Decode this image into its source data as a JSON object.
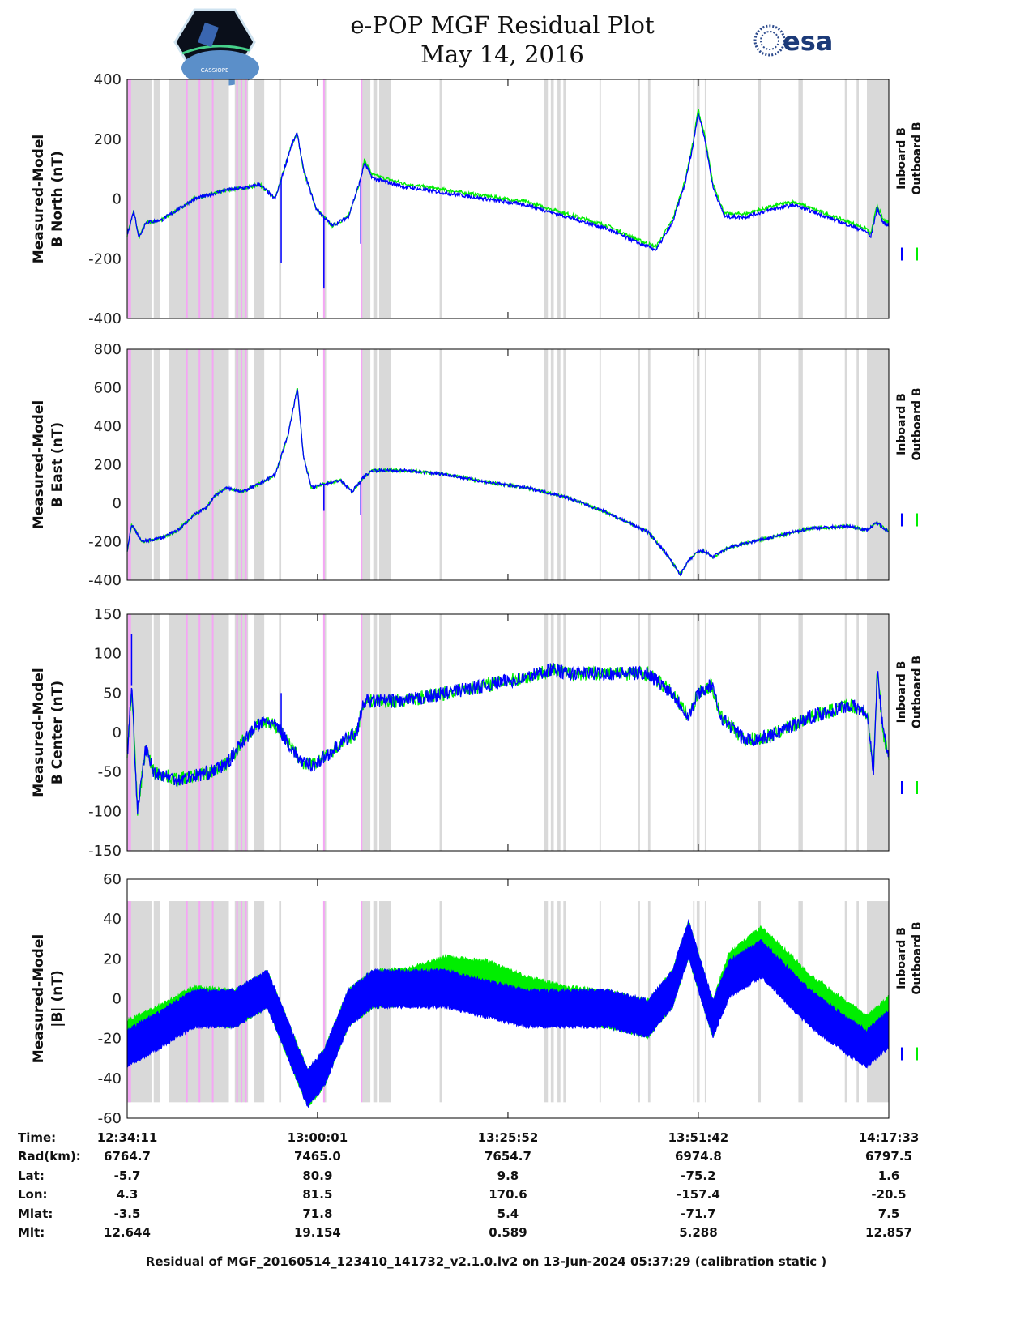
{
  "header": {
    "title": "e-POP MGF Residual Plot",
    "date": "May 14, 2016",
    "left_logo_text": "CASSIOPE",
    "right_logo_text": "esa"
  },
  "colors": {
    "inboard": "#0000ff",
    "outboard": "#00ee00",
    "shade": "#d9d9d9",
    "flag": "#f4a6f4"
  },
  "chart_data": {
    "type": "line",
    "x_unit": "minutes since 12:34:11",
    "xlim": [
      0,
      103.37
    ],
    "x_ticks": [
      0,
      25.83,
      51.68,
      77.52,
      103.37
    ],
    "shaded_intervals": [
      [
        0,
        3.4
      ],
      [
        3.6,
        4.5
      ],
      [
        5.7,
        13.8
      ],
      [
        14.6,
        16.4
      ],
      [
        17.2,
        18.6
      ],
      [
        20.6,
        20.9
      ],
      [
        26.7,
        27.0
      ],
      [
        31.9,
        33.0
      ],
      [
        33.4,
        33.9
      ],
      [
        34.2,
        35.8
      ],
      [
        42.4,
        42.7
      ],
      [
        56.6,
        57.1
      ],
      [
        57.5,
        57.9
      ],
      [
        58.4,
        58.8
      ],
      [
        59.2,
        59.5
      ],
      [
        64.1,
        64.3
      ],
      [
        69.4,
        69.6
      ],
      [
        70.7,
        71.0
      ],
      [
        76.8,
        77.0
      ],
      [
        77.3,
        77.7
      ],
      [
        78.4,
        78.6
      ],
      [
        85.6,
        86.0
      ],
      [
        91.1,
        91.7
      ],
      [
        97.4,
        97.7
      ],
      [
        99.0,
        99.3
      ],
      [
        100.4,
        103.4
      ]
    ],
    "flag_lines": [
      0.1,
      0.3,
      8.0,
      9.7,
      11.5,
      14.8,
      15.4,
      16.0,
      26.6,
      31.7
    ],
    "legend": [
      "Inboard B",
      "Outboard B"
    ],
    "panels": [
      {
        "ylabel1": "Measured-Model",
        "ylabel2": "B North (nT)",
        "ylim": [
          -400,
          400
        ],
        "yticks": [
          "-400",
          "-200",
          "0",
          "200",
          "400"
        ],
        "ytick_values": [
          -400,
          -200,
          0,
          200,
          400
        ],
        "noise": 6,
        "inboard": [
          [
            0,
            -120
          ],
          [
            0.9,
            -40
          ],
          [
            1.6,
            -130
          ],
          [
            2.5,
            -80
          ],
          [
            4.7,
            -70
          ],
          [
            9.1,
            0
          ],
          [
            13.5,
            30
          ],
          [
            16.8,
            40
          ],
          [
            17.9,
            50
          ],
          [
            20.1,
            0
          ],
          [
            22.3,
            180
          ],
          [
            23.1,
            220
          ],
          [
            23.9,
            100
          ],
          [
            25.6,
            -30
          ],
          [
            27.8,
            -90
          ],
          [
            30.0,
            -60
          ],
          [
            31.6,
            60
          ],
          [
            32.2,
            120
          ],
          [
            33.3,
            70
          ],
          [
            37.7,
            40
          ],
          [
            43.2,
            20
          ],
          [
            48.7,
            0
          ],
          [
            54.2,
            -20
          ],
          [
            59.7,
            -60
          ],
          [
            65.2,
            -100
          ],
          [
            69.6,
            -150
          ],
          [
            71.8,
            -170
          ],
          [
            74.0,
            -80
          ],
          [
            75.7,
            50
          ],
          [
            76.8,
            180
          ],
          [
            77.5,
            290
          ],
          [
            78.4,
            200
          ],
          [
            79.5,
            40
          ],
          [
            81.1,
            -60
          ],
          [
            83.9,
            -60
          ],
          [
            88.3,
            -30
          ],
          [
            90.5,
            -20
          ],
          [
            92.7,
            -40
          ],
          [
            97.1,
            -80
          ],
          [
            100.4,
            -110
          ],
          [
            100.9,
            -130
          ],
          [
            101.8,
            -30
          ],
          [
            102.6,
            -80
          ],
          [
            103.4,
            -90
          ]
        ],
        "outboard_offset": 10,
        "spikes": [
          [
            20.9,
            -215
          ],
          [
            26.7,
            -300
          ],
          [
            31.7,
            -150
          ]
        ]
      },
      {
        "ylabel1": "Measured-Model",
        "ylabel2": "B East (nT)",
        "ylim": [
          -400,
          800
        ],
        "yticks": [
          "-400",
          "-200",
          "0",
          "200",
          "400",
          "600",
          "800"
        ],
        "ytick_values": [
          -400,
          -200,
          0,
          200,
          400,
          600,
          800
        ],
        "noise": 8,
        "inboard": [
          [
            0,
            -250
          ],
          [
            0.6,
            -110
          ],
          [
            2.0,
            -200
          ],
          [
            4.7,
            -180
          ],
          [
            6.9,
            -140
          ],
          [
            9.1,
            -60
          ],
          [
            10.8,
            -20
          ],
          [
            11.9,
            40
          ],
          [
            13.5,
            80
          ],
          [
            15.7,
            60
          ],
          [
            17.9,
            100
          ],
          [
            20.1,
            150
          ],
          [
            21.8,
            350
          ],
          [
            23.1,
            600
          ],
          [
            23.9,
            250
          ],
          [
            25.0,
            80
          ],
          [
            26.7,
            100
          ],
          [
            28.9,
            120
          ],
          [
            30.5,
            60
          ],
          [
            32.2,
            140
          ],
          [
            33.3,
            170
          ],
          [
            37.7,
            170
          ],
          [
            43.2,
            150
          ],
          [
            48.7,
            110
          ],
          [
            54.2,
            80
          ],
          [
            59.7,
            30
          ],
          [
            65.2,
            -50
          ],
          [
            70.7,
            -150
          ],
          [
            72.9,
            -250
          ],
          [
            75.1,
            -370
          ],
          [
            76.2,
            -300
          ],
          [
            77.5,
            -250
          ],
          [
            78.4,
            -250
          ],
          [
            79.5,
            -280
          ],
          [
            81.7,
            -230
          ],
          [
            87.2,
            -180
          ],
          [
            92.7,
            -130
          ],
          [
            98.2,
            -120
          ],
          [
            100.4,
            -140
          ],
          [
            101.8,
            -100
          ],
          [
            103.4,
            -150
          ]
        ],
        "outboard_offset": 0,
        "spikes": [
          [
            26.7,
            -40
          ],
          [
            31.7,
            -60
          ]
        ]
      },
      {
        "ylabel1": "Measured-Model",
        "ylabel2": "B Center (nT)",
        "ylim": [
          -150,
          150
        ],
        "yticks": [
          "-150",
          "-100",
          "-50",
          "0",
          "50",
          "100",
          "150"
        ],
        "ytick_values": [
          -150,
          -100,
          -50,
          0,
          50,
          100,
          150
        ],
        "noise": 9,
        "inboard": [
          [
            0,
            -30
          ],
          [
            0.6,
            60
          ],
          [
            1.4,
            -100
          ],
          [
            2.5,
            -20
          ],
          [
            3.6,
            -50
          ],
          [
            6.9,
            -60
          ],
          [
            11.3,
            -50
          ],
          [
            13.5,
            -40
          ],
          [
            15.7,
            -10
          ],
          [
            17.9,
            10
          ],
          [
            19.0,
            15
          ],
          [
            20.6,
            5
          ],
          [
            22.3,
            -20
          ],
          [
            23.9,
            -40
          ],
          [
            25.6,
            -40
          ],
          [
            28.9,
            -15
          ],
          [
            31.1,
            0
          ],
          [
            32.2,
            40
          ],
          [
            37.7,
            40
          ],
          [
            43.2,
            50
          ],
          [
            48.7,
            60
          ],
          [
            54.2,
            70
          ],
          [
            57.5,
            80
          ],
          [
            59.7,
            75
          ],
          [
            65.2,
            75
          ],
          [
            70.7,
            75
          ],
          [
            74.0,
            50
          ],
          [
            76.2,
            20
          ],
          [
            77.5,
            50
          ],
          [
            79.3,
            60
          ],
          [
            80.6,
            20
          ],
          [
            83.9,
            -10
          ],
          [
            87.2,
            -5
          ],
          [
            92.7,
            20
          ],
          [
            98.2,
            35
          ],
          [
            100.4,
            25
          ],
          [
            101.3,
            -50
          ],
          [
            101.8,
            80
          ],
          [
            102.6,
            0
          ],
          [
            103.4,
            -30
          ]
        ],
        "outboard_offset": 0,
        "spikes": [
          [
            0.6,
            125
          ],
          [
            20.9,
            50
          ]
        ]
      },
      {
        "ylabel1": "Measured-Model",
        "ylabel2": "|B| (nT)",
        "ylim": [
          -60,
          60
        ],
        "yticks": [
          "-60",
          "-40",
          "-20",
          "0",
          "20",
          "40",
          "60"
        ],
        "ytick_values": [
          -60,
          -40,
          -20,
          0,
          20,
          40,
          60
        ],
        "shade_ylim": [
          -52,
          49
        ],
        "band_halfwidth": 10,
        "inboard": [
          [
            0,
            -25
          ],
          [
            4.7,
            -15
          ],
          [
            9.1,
            -5
          ],
          [
            14.6,
            -5
          ],
          [
            19.0,
            5
          ],
          [
            21.2,
            -15
          ],
          [
            24.5,
            -45
          ],
          [
            26.7,
            -35
          ],
          [
            30.0,
            -5
          ],
          [
            33.3,
            5
          ],
          [
            43.2,
            5
          ],
          [
            48.7,
            0
          ],
          [
            54.2,
            -5
          ],
          [
            59.7,
            -5
          ],
          [
            65.2,
            -5
          ],
          [
            70.7,
            -10
          ],
          [
            74.0,
            5
          ],
          [
            76.2,
            30
          ],
          [
            77.8,
            10
          ],
          [
            79.5,
            -10
          ],
          [
            81.7,
            10
          ],
          [
            86.1,
            20
          ],
          [
            92.7,
            -5
          ],
          [
            98.2,
            -20
          ],
          [
            100.4,
            -25
          ],
          [
            103.4,
            -15
          ]
        ],
        "outboard": [
          [
            0,
            -20
          ],
          [
            4.7,
            -12
          ],
          [
            9.1,
            -3
          ],
          [
            14.6,
            -5
          ],
          [
            19.0,
            5
          ],
          [
            21.2,
            -15
          ],
          [
            24.5,
            -45
          ],
          [
            26.7,
            -35
          ],
          [
            30.0,
            -5
          ],
          [
            33.3,
            5
          ],
          [
            38.0,
            6
          ],
          [
            43.2,
            12
          ],
          [
            48.7,
            10
          ],
          [
            54.2,
            2
          ],
          [
            59.7,
            -3
          ],
          [
            65.2,
            -5
          ],
          [
            70.7,
            -10
          ],
          [
            74.0,
            5
          ],
          [
            76.2,
            30
          ],
          [
            77.8,
            10
          ],
          [
            79.5,
            -10
          ],
          [
            81.7,
            14
          ],
          [
            86.1,
            27
          ],
          [
            92.7,
            3
          ],
          [
            98.2,
            -12
          ],
          [
            100.4,
            -18
          ],
          [
            103.4,
            -8
          ]
        ]
      }
    ]
  },
  "table": {
    "labels": [
      "Time:",
      "Rad(km):",
      "Lat:",
      "Lon:",
      "Mlat:",
      "Mlt:"
    ],
    "columns": [
      [
        "12:34:11",
        "6764.7",
        "-5.7",
        "4.3",
        "-3.5",
        "12.644"
      ],
      [
        "13:00:01",
        "7465.0",
        "80.9",
        "81.5",
        "71.8",
        "19.154"
      ],
      [
        "13:25:52",
        "7654.7",
        "9.8",
        "170.6",
        "5.4",
        "0.589"
      ],
      [
        "13:51:42",
        "6974.8",
        "-75.2",
        "-157.4",
        "-71.7",
        "5.288"
      ],
      [
        "14:17:33",
        "6797.5",
        "1.6",
        "-20.5",
        "7.5",
        "12.857"
      ]
    ]
  },
  "footer": "Residual of MGF_20160514_123410_141732_v2.1.0.lv2 on 13-Jun-2024 05:37:29 (calibration static )"
}
